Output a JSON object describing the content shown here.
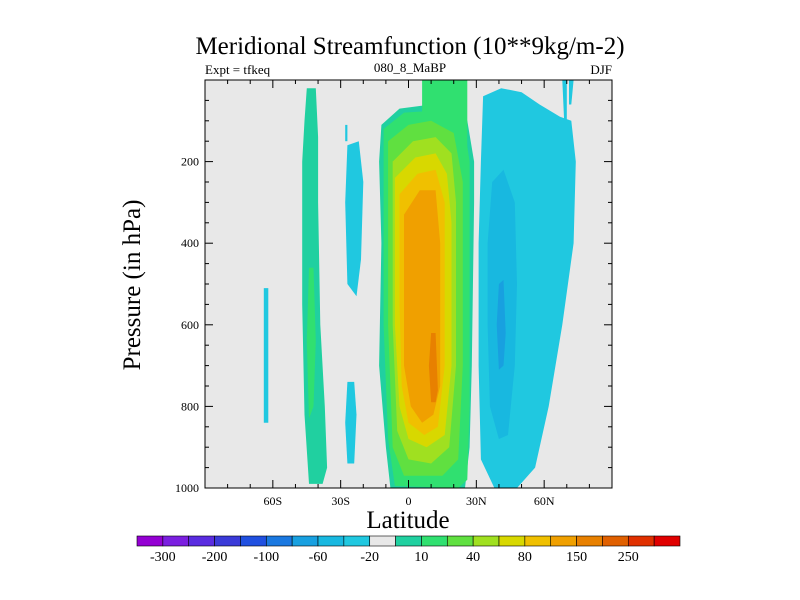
{
  "chart_data": {
    "type": "contour",
    "title": "Meridional Streamfunction (10**9kg/m-2)",
    "left_label": "Expt = tfkeq",
    "center_label": "080_8_MaBP",
    "right_label": "DJF",
    "xlabel": "Latitude",
    "ylabel": "Pressure (in hPa)",
    "xlim": [
      -90,
      90
    ],
    "ylim": [
      1000,
      0
    ],
    "x_ticks": [
      {
        "value": -60,
        "label": "60S"
      },
      {
        "value": -30,
        "label": "30S"
      },
      {
        "value": 0,
        "label": "0"
      },
      {
        "value": 30,
        "label": "30N"
      },
      {
        "value": 60,
        "label": "60N"
      }
    ],
    "y_ticks": [
      {
        "value": 200,
        "label": "200"
      },
      {
        "value": 400,
        "label": "400"
      },
      {
        "value": 600,
        "label": "600"
      },
      {
        "value": 800,
        "label": "800"
      },
      {
        "value": 1000,
        "label": "1000"
      }
    ],
    "background_color": "#e8e8e8",
    "colorbar": {
      "colors": [
        "#9400d3",
        "#7b1fe0",
        "#5a2ce0",
        "#3a3ad8",
        "#2050e0",
        "#1a78e0",
        "#18a0e0",
        "#18b8e0",
        "#20c8e0",
        "#e8e8e8",
        "#20d0a0",
        "#30e070",
        "#60e040",
        "#a0e020",
        "#d8d800",
        "#f0c000",
        "#f0a000",
        "#e88000",
        "#e06000",
        "#e03000",
        "#e00000"
      ],
      "labels": [
        {
          "index": 1,
          "text": "-300"
        },
        {
          "index": 3,
          "text": "-200"
        },
        {
          "index": 5,
          "text": "-100"
        },
        {
          "index": 7,
          "text": "-60"
        },
        {
          "index": 9,
          "text": "-20"
        },
        {
          "index": 11,
          "text": "10"
        },
        {
          "index": 13,
          "text": "40"
        },
        {
          "index": 15,
          "text": "80"
        },
        {
          "index": 17,
          "text": "150"
        },
        {
          "index": 19,
          "text": "250"
        }
      ]
    },
    "filled_regions": [
      {
        "name": "sh-cyan-patch-far",
        "level": 8,
        "points": [
          [
            -64,
            510
          ],
          [
            -62,
            510
          ],
          [
            -62,
            840
          ],
          [
            -64,
            840
          ]
        ]
      },
      {
        "name": "sh-green-band",
        "level": 10,
        "points": [
          [
            -45,
            20
          ],
          [
            -41,
            20
          ],
          [
            -40,
            140
          ],
          [
            -40,
            300
          ],
          [
            -39,
            600
          ],
          [
            -37,
            800
          ],
          [
            -36,
            950
          ],
          [
            -38,
            990
          ],
          [
            -44,
            990
          ],
          [
            -46,
            820
          ],
          [
            -47,
            550
          ],
          [
            -47,
            200
          ],
          [
            -46,
            100
          ]
        ]
      },
      {
        "name": "sh-green-core",
        "level": 11,
        "points": [
          [
            -44,
            460
          ],
          [
            -42,
            460
          ],
          [
            -41,
            640
          ],
          [
            -42,
            800
          ],
          [
            -44,
            830
          ],
          [
            -45,
            640
          ]
        ]
      },
      {
        "name": "sh-cyan-mid-upper",
        "level": 8,
        "points": [
          [
            -27,
            160
          ],
          [
            -22,
            150
          ],
          [
            -20,
            250
          ],
          [
            -21,
            440
          ],
          [
            -23,
            530
          ],
          [
            -27,
            500
          ],
          [
            -28,
            300
          ]
        ]
      },
      {
        "name": "sh-cyan-mid-lower",
        "level": 8,
        "points": [
          [
            -27,
            740
          ],
          [
            -24,
            740
          ],
          [
            -23,
            820
          ],
          [
            -24,
            940
          ],
          [
            -27,
            940
          ],
          [
            -28,
            840
          ]
        ]
      },
      {
        "name": "sh-cyan-top-tick",
        "level": 8,
        "points": [
          [
            -28,
            110
          ],
          [
            -27,
            110
          ],
          [
            -27,
            150
          ],
          [
            -28,
            150
          ]
        ]
      },
      {
        "name": "hadley-l10",
        "level": 10,
        "points": [
          [
            -12,
            110
          ],
          [
            -4,
            70
          ],
          [
            10,
            60
          ],
          [
            22,
            70
          ],
          [
            26,
            100
          ],
          [
            29,
            200
          ],
          [
            29,
            300
          ],
          [
            28,
            700
          ],
          [
            27,
            900
          ],
          [
            25,
            1000
          ],
          [
            -8,
            1000
          ],
          [
            -10,
            900
          ],
          [
            -13,
            700
          ],
          [
            -12,
            400
          ],
          [
            -13,
            200
          ]
        ]
      },
      {
        "name": "hadley-top-stem",
        "level": 11,
        "points": [
          [
            6,
            0
          ],
          [
            26,
            0
          ],
          [
            26,
            200
          ],
          [
            6,
            200
          ]
        ]
      },
      {
        "name": "hadley-l11",
        "level": 11,
        "points": [
          [
            -11,
            120
          ],
          [
            -2,
            80
          ],
          [
            12,
            75
          ],
          [
            24,
            90
          ],
          [
            27,
            200
          ],
          [
            27,
            800
          ],
          [
            26,
            980
          ],
          [
            22,
            1000
          ],
          [
            -6,
            995
          ],
          [
            -9,
            880
          ],
          [
            -11,
            600
          ],
          [
            -11,
            300
          ]
        ]
      },
      {
        "name": "hadley-l12",
        "level": 12,
        "points": [
          [
            -9,
            150
          ],
          [
            0,
            110
          ],
          [
            10,
            100
          ],
          [
            20,
            130
          ],
          [
            24,
            250
          ],
          [
            24,
            700
          ],
          [
            22,
            930
          ],
          [
            15,
            970
          ],
          [
            -2,
            970
          ],
          [
            -7,
            900
          ],
          [
            -9,
            600
          ],
          [
            -9,
            300
          ]
        ]
      },
      {
        "name": "hadley-l13",
        "level": 13,
        "points": [
          [
            -7,
            200
          ],
          [
            2,
            150
          ],
          [
            12,
            140
          ],
          [
            19,
            180
          ],
          [
            21,
            300
          ],
          [
            21,
            700
          ],
          [
            18,
            900
          ],
          [
            10,
            940
          ],
          [
            0,
            930
          ],
          [
            -5,
            860
          ],
          [
            -7,
            600
          ],
          [
            -7,
            350
          ]
        ]
      },
      {
        "name": "hadley-l14",
        "level": 14,
        "points": [
          [
            -6,
            240
          ],
          [
            3,
            190
          ],
          [
            12,
            180
          ],
          [
            17,
            230
          ],
          [
            19,
            350
          ],
          [
            19,
            700
          ],
          [
            16,
            870
          ],
          [
            8,
            900
          ],
          [
            0,
            880
          ],
          [
            -4,
            800
          ],
          [
            -6,
            600
          ]
        ]
      },
      {
        "name": "hadley-l15",
        "level": 15,
        "points": [
          [
            -4,
            280
          ],
          [
            4,
            230
          ],
          [
            12,
            220
          ],
          [
            16,
            300
          ],
          [
            16,
            700
          ],
          [
            13,
            850
          ],
          [
            7,
            870
          ],
          [
            0,
            840
          ],
          [
            -3,
            750
          ],
          [
            -4,
            550
          ]
        ]
      },
      {
        "name": "hadley-l16",
        "level": 16,
        "points": [
          [
            -2,
            330
          ],
          [
            5,
            270
          ],
          [
            12,
            270
          ],
          [
            14,
            400
          ],
          [
            14,
            750
          ],
          [
            11,
            820
          ],
          [
            6,
            840
          ],
          [
            1,
            800
          ],
          [
            -2,
            700
          ]
        ]
      },
      {
        "name": "hadley-l17",
        "level": 17,
        "points": [
          [
            10,
            620
          ],
          [
            12,
            620
          ],
          [
            13,
            760
          ],
          [
            12,
            790
          ],
          [
            10,
            790
          ],
          [
            9,
            700
          ]
        ]
      },
      {
        "name": "nh-cyan-band",
        "level": 8,
        "points": [
          [
            33,
            40
          ],
          [
            41,
            20
          ],
          [
            50,
            30
          ],
          [
            58,
            60
          ],
          [
            67,
            90
          ],
          [
            72,
            100
          ],
          [
            74,
            200
          ],
          [
            73,
            400
          ],
          [
            68,
            600
          ],
          [
            62,
            800
          ],
          [
            56,
            950
          ],
          [
            48,
            1000
          ],
          [
            38,
            1000
          ],
          [
            32,
            930
          ],
          [
            31,
            700
          ],
          [
            31,
            400
          ],
          [
            32,
            200
          ]
        ]
      },
      {
        "name": "nh-blue-core",
        "level": 7,
        "points": [
          [
            37,
            250
          ],
          [
            42,
            220
          ],
          [
            47,
            300
          ],
          [
            48,
            500
          ],
          [
            47,
            700
          ],
          [
            44,
            870
          ],
          [
            40,
            880
          ],
          [
            36,
            800
          ],
          [
            35,
            600
          ],
          [
            35,
            400
          ]
        ]
      },
      {
        "name": "nh-blue-inner",
        "level": 6,
        "points": [
          [
            40,
            500
          ],
          [
            42,
            490
          ],
          [
            43,
            620
          ],
          [
            42,
            700
          ],
          [
            40,
            710
          ],
          [
            39,
            600
          ]
        ]
      },
      {
        "name": "nh-cyan-top-tick",
        "level": 8,
        "points": [
          [
            71,
            0
          ],
          [
            73,
            0
          ],
          [
            72,
            60
          ],
          [
            71,
            60
          ]
        ]
      },
      {
        "name": "nh-cyan-thin-tail",
        "level": 8,
        "points": [
          [
            68,
            0
          ],
          [
            70,
            0
          ],
          [
            70,
            100
          ],
          [
            69,
            120
          ]
        ]
      }
    ]
  }
}
